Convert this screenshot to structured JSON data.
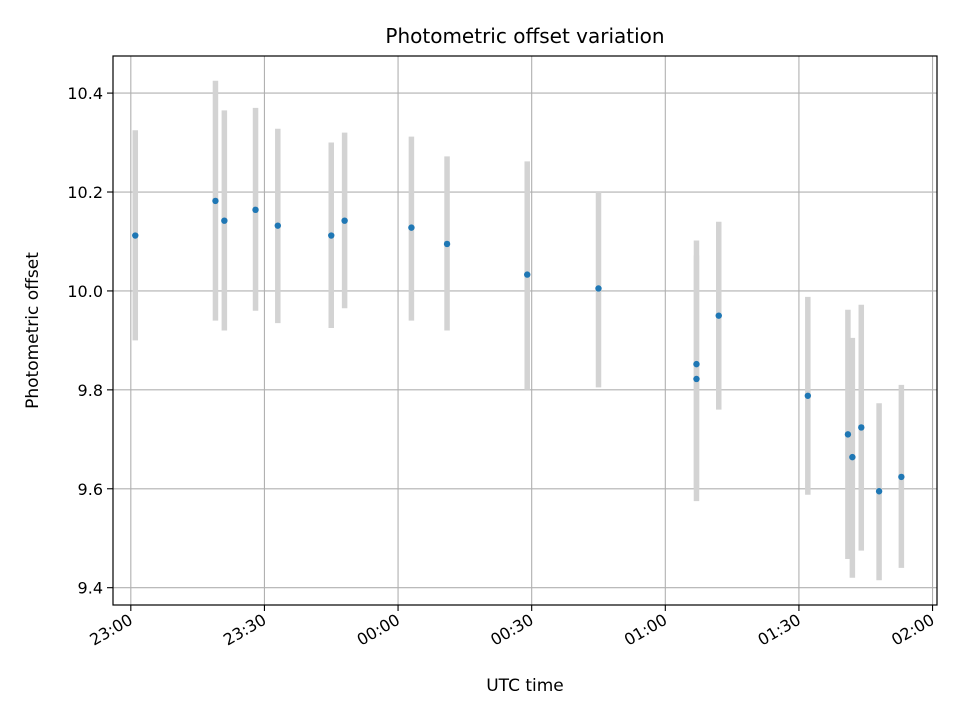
{
  "chart_data": {
    "type": "scatter",
    "title": "Photometric offset variation",
    "xlabel": "UTC time",
    "ylabel": "Photometric offset",
    "x_axis_type": "time",
    "xlim": [
      "22:56",
      "02:01"
    ],
    "ylim": [
      9.365,
      10.475
    ],
    "x_ticks": [
      "23:00",
      "23:30",
      "00:00",
      "00:30",
      "01:00",
      "01:30",
      "02:00"
    ],
    "y_ticks": [
      9.4,
      9.6,
      9.8,
      10.0,
      10.2,
      10.4
    ],
    "grid": true,
    "marker_color": "#1f77b4",
    "errorbar_color": "#d3d3d3",
    "series": [
      {
        "points": [
          {
            "t": "23:01",
            "y": 10.112,
            "ylo": 9.9,
            "yhi": 10.325
          },
          {
            "t": "23:19",
            "y": 10.182,
            "ylo": 9.94,
            "yhi": 10.425
          },
          {
            "t": "23:21",
            "y": 10.142,
            "ylo": 9.92,
            "yhi": 10.365
          },
          {
            "t": "23:28",
            "y": 10.164,
            "ylo": 9.96,
            "yhi": 10.37
          },
          {
            "t": "23:33",
            "y": 10.132,
            "ylo": 9.935,
            "yhi": 10.328
          },
          {
            "t": "23:45",
            "y": 10.112,
            "ylo": 9.925,
            "yhi": 10.3
          },
          {
            "t": "23:48",
            "y": 10.142,
            "ylo": 9.965,
            "yhi": 10.32
          },
          {
            "t": "00:03",
            "y": 10.128,
            "ylo": 9.94,
            "yhi": 10.312
          },
          {
            "t": "00:11",
            "y": 10.095,
            "ylo": 9.92,
            "yhi": 10.272
          },
          {
            "t": "00:29",
            "y": 10.033,
            "ylo": 9.8,
            "yhi": 10.262
          },
          {
            "t": "00:45",
            "y": 10.005,
            "ylo": 9.805,
            "yhi": 10.2
          },
          {
            "t": "01:07",
            "y": 9.822,
            "ylo": 9.575,
            "yhi": 10.072
          },
          {
            "t": "01:07",
            "y": 9.852,
            "ylo": 9.6,
            "yhi": 10.102
          },
          {
            "t": "01:12",
            "y": 9.95,
            "ylo": 9.76,
            "yhi": 10.14
          },
          {
            "t": "01:32",
            "y": 9.788,
            "ylo": 9.588,
            "yhi": 9.988
          },
          {
            "t": "01:41",
            "y": 9.71,
            "ylo": 9.458,
            "yhi": 9.962
          },
          {
            "t": "01:42",
            "y": 9.664,
            "ylo": 9.42,
            "yhi": 9.905
          },
          {
            "t": "01:44",
            "y": 9.724,
            "ylo": 9.475,
            "yhi": 9.972
          },
          {
            "t": "01:48",
            "y": 9.595,
            "ylo": 9.415,
            "yhi": 9.773
          },
          {
            "t": "01:53",
            "y": 9.624,
            "ylo": 9.44,
            "yhi": 9.81
          }
        ]
      }
    ]
  }
}
